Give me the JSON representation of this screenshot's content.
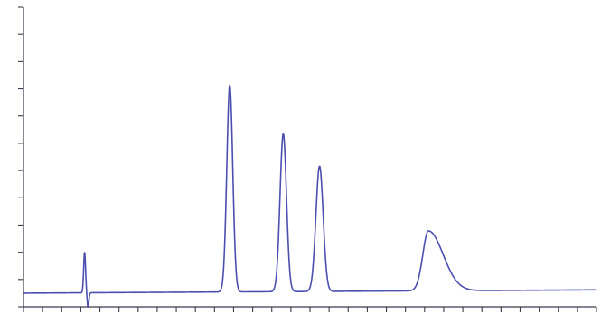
{
  "chart_data": {
    "type": "line",
    "title": "",
    "xlabel": "",
    "ylabel": "",
    "xlim": [
      0,
      30
    ],
    "ylim": [
      -0.5,
      10.5
    ],
    "x_ticks": 30,
    "y_ticks": 11,
    "grid": false,
    "legend": "none",
    "series": [
      {
        "color": "#4b4fb0",
        "baseline": 0,
        "baseline_drift": 0.12,
        "disturbance": {
          "x": 3.2,
          "up": 1.5,
          "down": -0.55
        },
        "peaks": [
          {
            "x": 10.8,
            "height": 7.6,
            "width": 0.22
          },
          {
            "x": 13.6,
            "height": 5.8,
            "width": 0.24
          },
          {
            "x": 15.5,
            "height": 4.6,
            "width": 0.27
          },
          {
            "x": 21.2,
            "height": 2.2,
            "width": 0.75,
            "tailing": true
          }
        ]
      }
    ]
  }
}
